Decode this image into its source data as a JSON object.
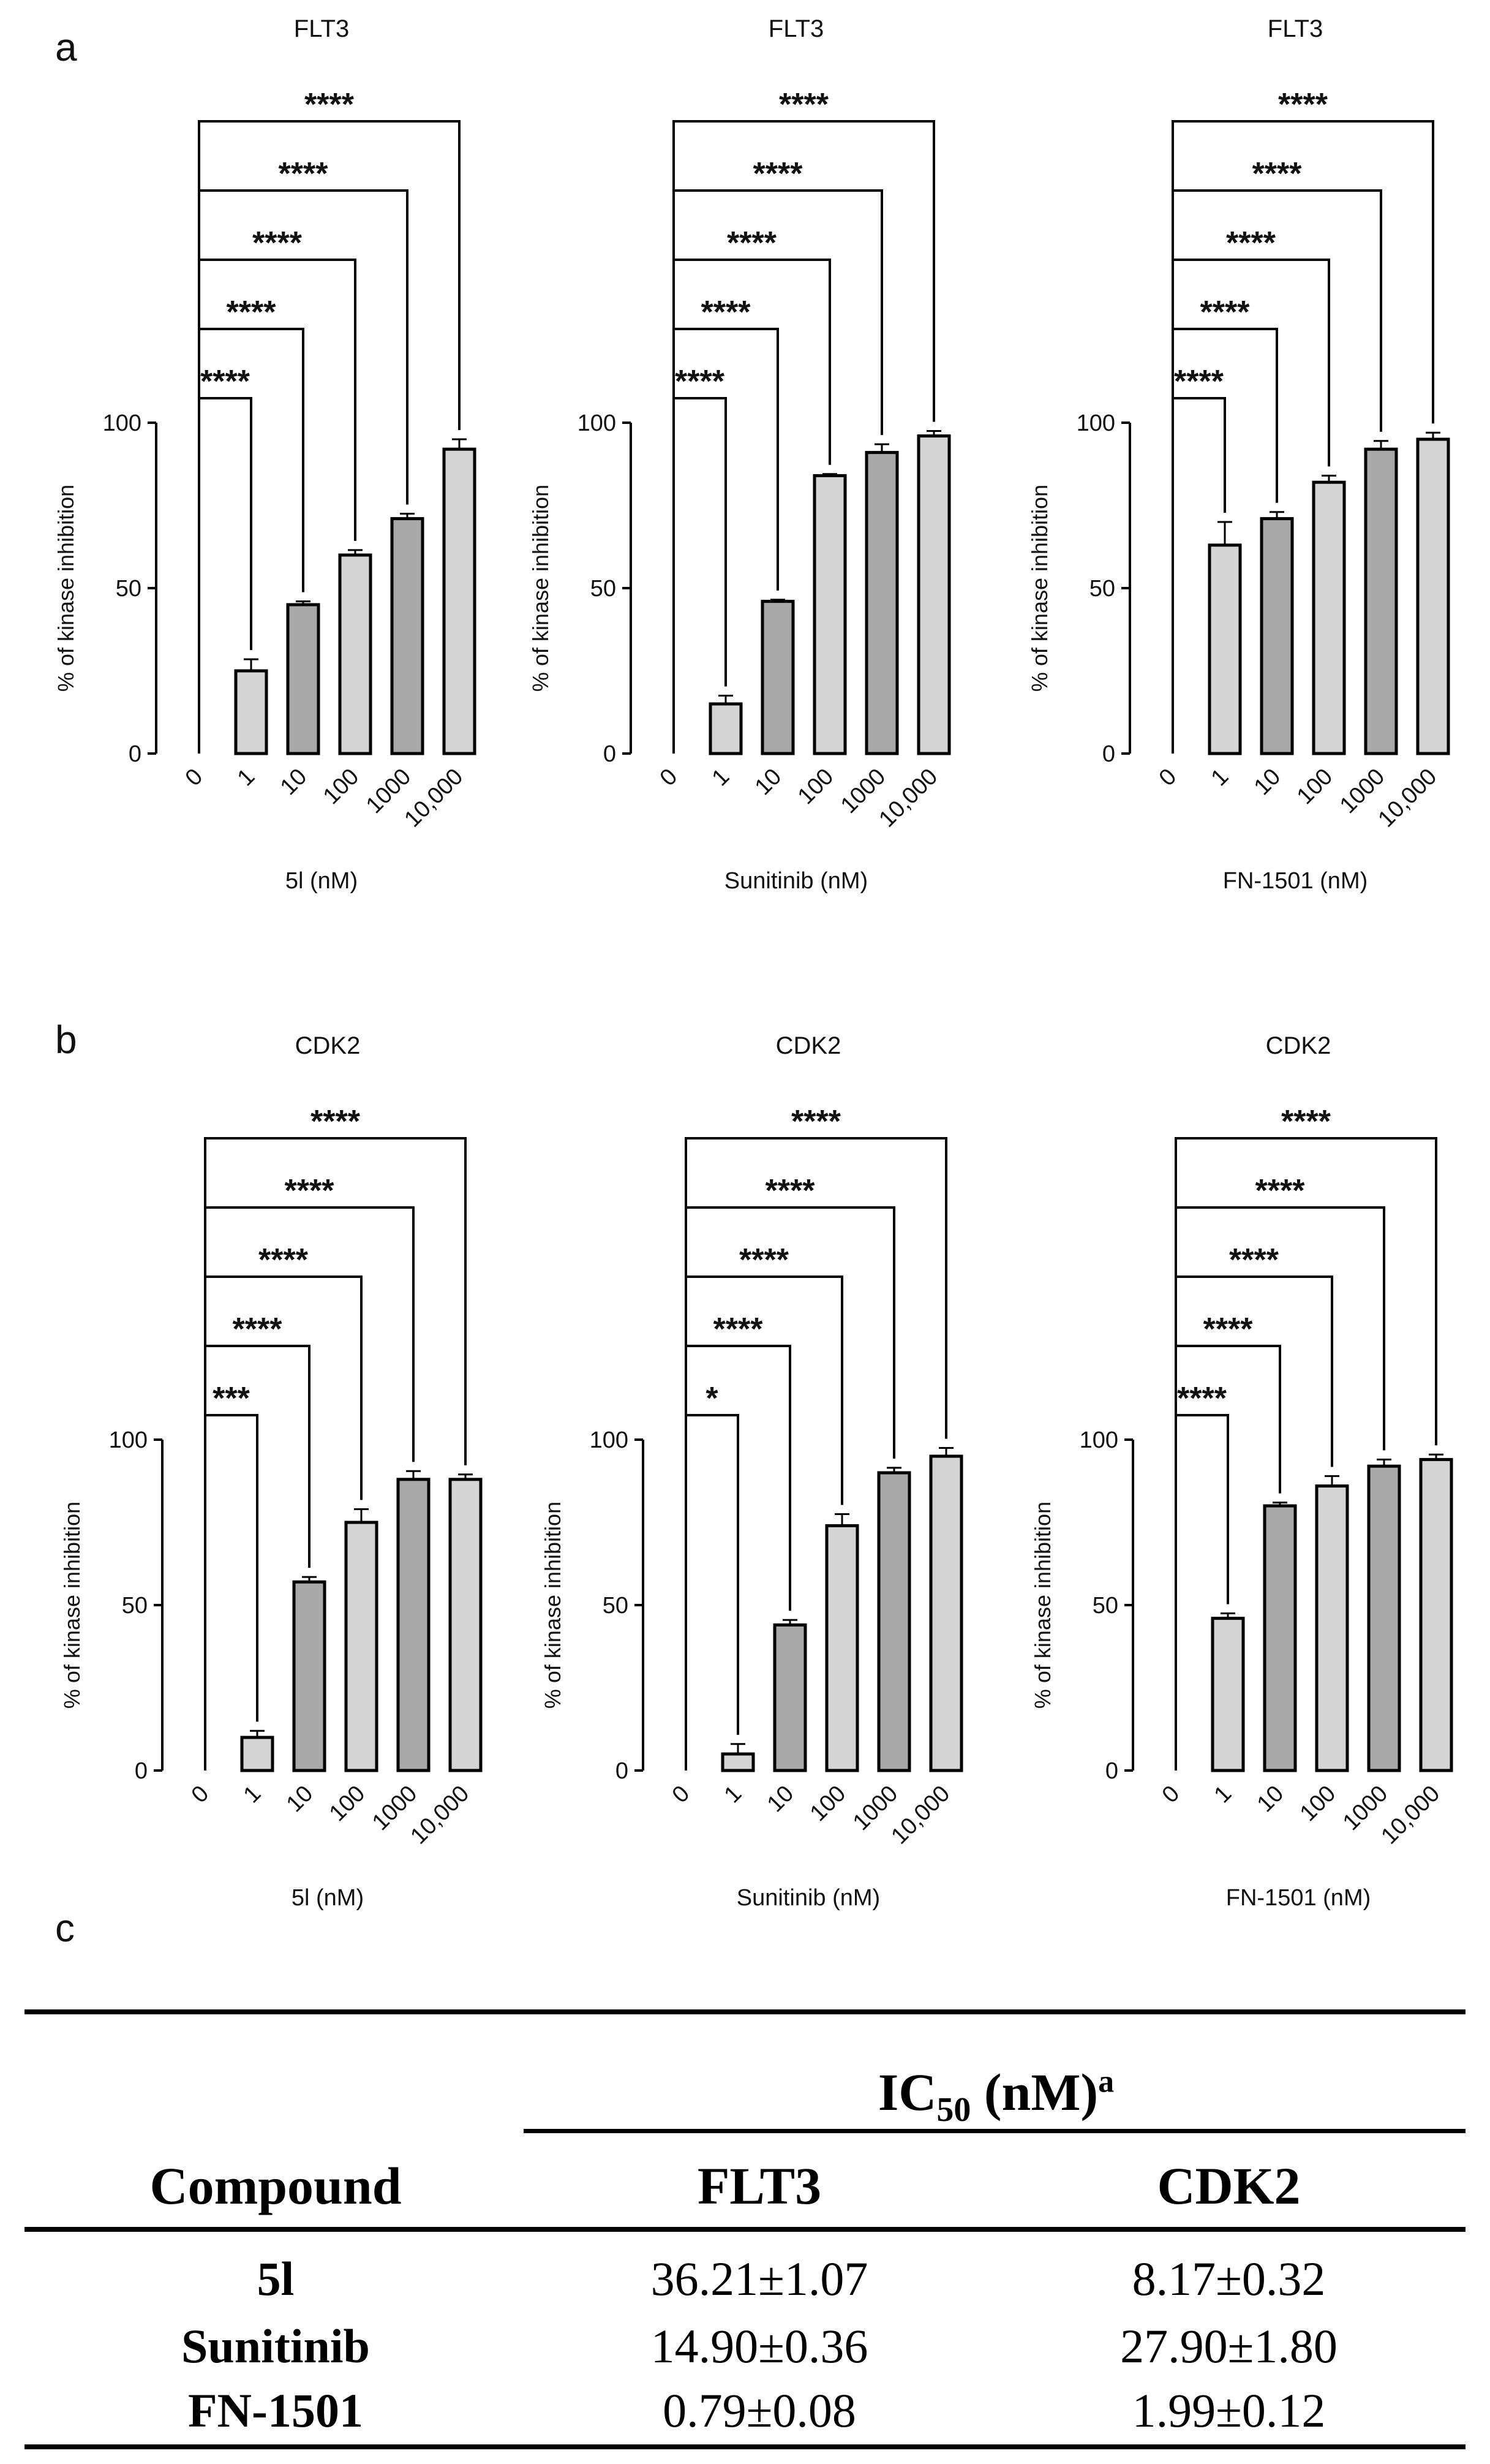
{
  "panel_labels": {
    "a": "a",
    "b": "b",
    "c": "c"
  },
  "colors": {
    "light_bar": "#d4d4d4",
    "dark_bar": "#a9a9a9",
    "stroke": "#000000"
  },
  "chart_data": [
    {
      "id": "a1",
      "type": "bar",
      "title": "FLT3",
      "xlabel": "5l (nM)",
      "ylabel": "% of kinase inhibition",
      "categories": [
        "0",
        "1",
        "10",
        "100",
        "1000",
        "10,000"
      ],
      "values": [
        0,
        25,
        45,
        60,
        71,
        92
      ],
      "errors": [
        0,
        3.5,
        1,
        1.5,
        1.5,
        3
      ],
      "significance": [
        "****",
        "****",
        "****",
        "****",
        "****"
      ],
      "ylim": [
        0,
        100
      ],
      "yticks": [
        0,
        50,
        100
      ]
    },
    {
      "id": "a2",
      "type": "bar",
      "title": "FLT3",
      "xlabel": "Sunitinib (nM)",
      "ylabel": "% of kinase inhibition",
      "categories": [
        "0",
        "1",
        "10",
        "100",
        "1000",
        "10,000"
      ],
      "values": [
        0,
        15,
        46,
        84,
        91,
        96
      ],
      "errors": [
        0,
        2.5,
        0.5,
        0.5,
        2.5,
        1.5
      ],
      "significance": [
        "****",
        "****",
        "****",
        "****",
        "****"
      ],
      "ylim": [
        0,
        100
      ],
      "yticks": [
        0,
        50,
        100
      ]
    },
    {
      "id": "a3",
      "type": "bar",
      "title": "FLT3",
      "xlabel": "FN-1501 (nM)",
      "ylabel": "% of kinase inhibition",
      "categories": [
        "0",
        "1",
        "10",
        "100",
        "1000",
        "10,000"
      ],
      "values": [
        0,
        63,
        71,
        82,
        92,
        95
      ],
      "errors": [
        0,
        7,
        2,
        2,
        2.5,
        2
      ],
      "significance": [
        "****",
        "****",
        "****",
        "****",
        "****"
      ],
      "ylim": [
        0,
        100
      ],
      "yticks": [
        0,
        50,
        100
      ]
    },
    {
      "id": "b1",
      "type": "bar",
      "title": "CDK2",
      "xlabel": "5l (nM)",
      "ylabel": "% of kinase inhibition",
      "categories": [
        "0",
        "1",
        "10",
        "100",
        "1000",
        "10,000"
      ],
      "values": [
        0,
        10,
        57,
        75,
        88,
        88
      ],
      "errors": [
        0,
        2,
        1.5,
        4,
        2.5,
        1.5
      ],
      "significance": [
        "***",
        "****",
        "****",
        "****",
        "****"
      ],
      "ylim": [
        0,
        100
      ],
      "yticks": [
        0,
        50,
        100
      ]
    },
    {
      "id": "b2",
      "type": "bar",
      "title": "CDK2",
      "xlabel": "Sunitinib (nM)",
      "ylabel": "% of kinase inhibition",
      "categories": [
        "0",
        "1",
        "10",
        "100",
        "1000",
        "10,000"
      ],
      "values": [
        0,
        5,
        44,
        74,
        90,
        95
      ],
      "errors": [
        0,
        3,
        1.5,
        3.5,
        1.5,
        2.5
      ],
      "significance": [
        "*",
        "****",
        "****",
        "****",
        "****"
      ],
      "ylim": [
        0,
        100
      ],
      "yticks": [
        0,
        50,
        100
      ]
    },
    {
      "id": "b3",
      "type": "bar",
      "title": "CDK2",
      "xlabel": "FN-1501 (nM)",
      "ylabel": "% of kinase inhibition",
      "categories": [
        "0",
        "1",
        "10",
        "100",
        "1000",
        "10,000"
      ],
      "values": [
        0,
        46,
        80,
        86,
        92,
        94
      ],
      "errors": [
        0,
        1.5,
        1,
        3,
        2,
        1.5
      ],
      "significance": [
        "****",
        "****",
        "****",
        "****",
        "****"
      ],
      "ylim": [
        0,
        100
      ],
      "yticks": [
        0,
        50,
        100
      ]
    }
  ],
  "table": {
    "group_header": "IC",
    "group_header_sub": "50",
    "group_header_tail": " (nM)",
    "group_header_sup": "a",
    "columns": [
      "Compound",
      "FLT3",
      "CDK2"
    ],
    "rows": [
      [
        "5l",
        "36.21±1.07",
        "8.17±0.32"
      ],
      [
        "Sunitinib",
        "14.90±0.36",
        "27.90±1.80"
      ],
      [
        "FN-1501",
        "0.79±0.08",
        "1.99±0.12"
      ]
    ]
  }
}
